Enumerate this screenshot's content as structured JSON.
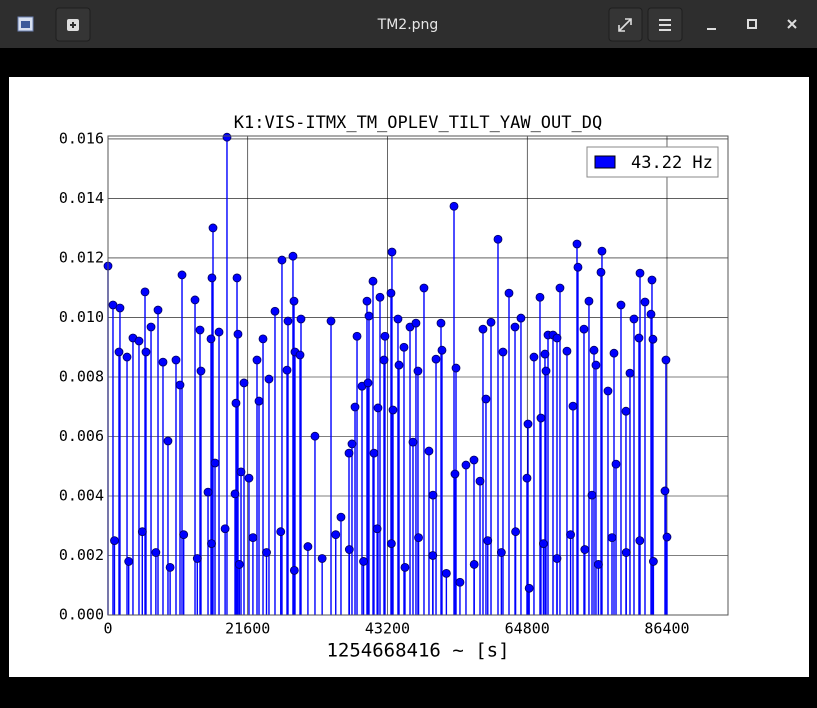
{
  "window_title": "TM2.png",
  "chart_data": {
    "type": "stem",
    "title": "K1:VIS-ITMX_TM_OPLEV_TILT_YAW_OUT_DQ",
    "x_label": "1254668416 ~ [s]",
    "xlim": [
      0,
      95830
    ],
    "ylim": [
      0,
      0.0161
    ],
    "xticks": [
      0,
      21600,
      43200,
      64800,
      86400
    ],
    "yticks": [
      {
        "value": 0,
        "label": "0.000"
      },
      {
        "value": 0.002,
        "label": "0.002"
      },
      {
        "value": 0.004,
        "label": "0.004"
      },
      {
        "value": 0.006,
        "label": "0.006"
      },
      {
        "value": 0.008,
        "label": "0.008"
      },
      {
        "value": 0.01,
        "label": "0.010"
      },
      {
        "value": 0.012,
        "label": "0.012"
      },
      {
        "value": 0.014,
        "label": "0.014"
      },
      {
        "value": 0.016,
        "label": "0.016"
      }
    ],
    "grid": true,
    "legend": "upper right",
    "series": [
      {
        "name": "43.22 Hz",
        "color": "#0000ff",
        "x": [
          0,
          770,
          1850,
          1700,
          2940,
          3860,
          4790,
          5720,
          5870,
          6650,
          7730,
          8500,
          9270,
          10510,
          11440,
          11130,
          13450,
          14370,
          14220,
          15460,
          16230,
          16070,
          15920,
          16540,
          17160,
          18390,
          19630,
          19940,
          20090,
          19780,
          20560,
          21020,
          21790,
          23030,
          23340,
          23960,
          24880,
          25810,
          26890,
          27670,
          27820,
          28590,
          28750,
          28900,
          29680,
          29830,
          31990,
          34470,
          36010,
          37250,
          37710,
          38180,
          38490,
          39260,
          40190,
          40030,
          40340,
          41110,
          40960,
          41730,
          42040,
          42660,
          42810,
          43890,
          44050,
          43740,
          44820,
          44980,
          45750,
          46680,
          47600,
          47140,
          47910,
          48840,
          49610,
          50230,
          50700,
          51470,
          51620,
          53630,
          53480,
          53790,
          55330,
          56570,
          57500,
          57960,
          58420,
          59200,
          60280,
          61050,
          61980,
          62910,
          63830,
          64920,
          64760,
          65840,
          66770,
          66920,
          67540,
          67700,
          68010,
          68780,
          69400,
          69860,
          70940,
          71870,
          72490,
          72640,
          73570,
          74340,
          74810,
          75120,
          75420,
          76350,
          76200,
          77280,
          78210,
          78520,
          79290,
          80060,
          80680,
          81300,
          82230,
          82070,
          83000,
          84080,
          83930,
          84230,
          86090,
          86240,
          86400,
          1000,
          3200,
          5300,
          7400,
          9600,
          11700,
          13800,
          16000,
          18100,
          20300,
          22400,
          24500,
          26700,
          28800,
          30900,
          33100,
          35200,
          37300,
          39500,
          41600,
          43800,
          45900,
          48000,
          50200,
          52300,
          54400,
          56600,
          58700,
          60800,
          63000,
          65100,
          67300,
          69400,
          71500,
          73700,
          75800,
          77900,
          80100,
          82200,
          84300
        ],
        "values": [
          0.01173,
          0.01042,
          0.01032,
          0.00884,
          0.00867,
          0.00931,
          0.00921,
          0.01086,
          0.00884,
          0.00968,
          0.01025,
          0.0085,
          0.00585,
          0.00857,
          0.01143,
          0.00773,
          0.01059,
          0.0082,
          0.00958,
          0.00413,
          0.01301,
          0.01133,
          0.00928,
          0.00511,
          0.00951,
          0.01606,
          0.00407,
          0.01133,
          0.00944,
          0.00712,
          0.00481,
          0.0078,
          0.0046,
          0.00857,
          0.00719,
          0.00928,
          0.00793,
          0.01021,
          0.01193,
          0.00823,
          0.00988,
          0.01206,
          0.01055,
          0.00884,
          0.00874,
          0.00995,
          0.00601,
          0.00988,
          0.00329,
          0.00544,
          0.00575,
          0.00699,
          0.00937,
          0.00769,
          0.0078,
          0.01055,
          0.01005,
          0.00544,
          0.01122,
          0.00696,
          0.01068,
          0.00857,
          0.00937,
          0.0122,
          0.00689,
          0.01082,
          0.00995,
          0.0084,
          0.009,
          0.00968,
          0.00981,
          0.00581,
          0.0082,
          0.01099,
          0.00551,
          0.00403,
          0.0086,
          0.00981,
          0.0089,
          0.00474,
          0.01374,
          0.0083,
          0.00504,
          0.00521,
          0.0045,
          0.00961,
          0.00726,
          0.00984,
          0.01263,
          0.00884,
          0.01082,
          0.00968,
          0.00998,
          0.00642,
          0.0046,
          0.00867,
          0.01068,
          0.00662,
          0.00877,
          0.0082,
          0.00941,
          0.00941,
          0.00931,
          0.01099,
          0.00887,
          0.00702,
          0.01247,
          0.01169,
          0.00961,
          0.01055,
          0.00403,
          0.0089,
          0.0084,
          0.01223,
          0.01152,
          0.00753,
          0.0088,
          0.00507,
          0.01042,
          0.00685,
          0.00813,
          0.00995,
          0.01149,
          0.00931,
          0.01052,
          0.01126,
          0.01011,
          0.00927,
          0.00417,
          0.00857,
          0.00262,
          0.0025,
          0.0018,
          0.0028,
          0.0021,
          0.0016,
          0.0027,
          0.0019,
          0.0024,
          0.0029,
          0.0017,
          0.0026,
          0.0021,
          0.0028,
          0.0015,
          0.0023,
          0.0019,
          0.0027,
          0.0022,
          0.0018,
          0.0029,
          0.0024,
          0.0016,
          0.0026,
          0.002,
          0.0014,
          0.0011,
          0.0017,
          0.0025,
          0.0021,
          0.0028,
          0.0009,
          0.0024,
          0.0019,
          0.0027,
          0.0022,
          0.0017,
          0.0026,
          0.0021,
          0.0025,
          0.0018
        ]
      }
    ]
  }
}
